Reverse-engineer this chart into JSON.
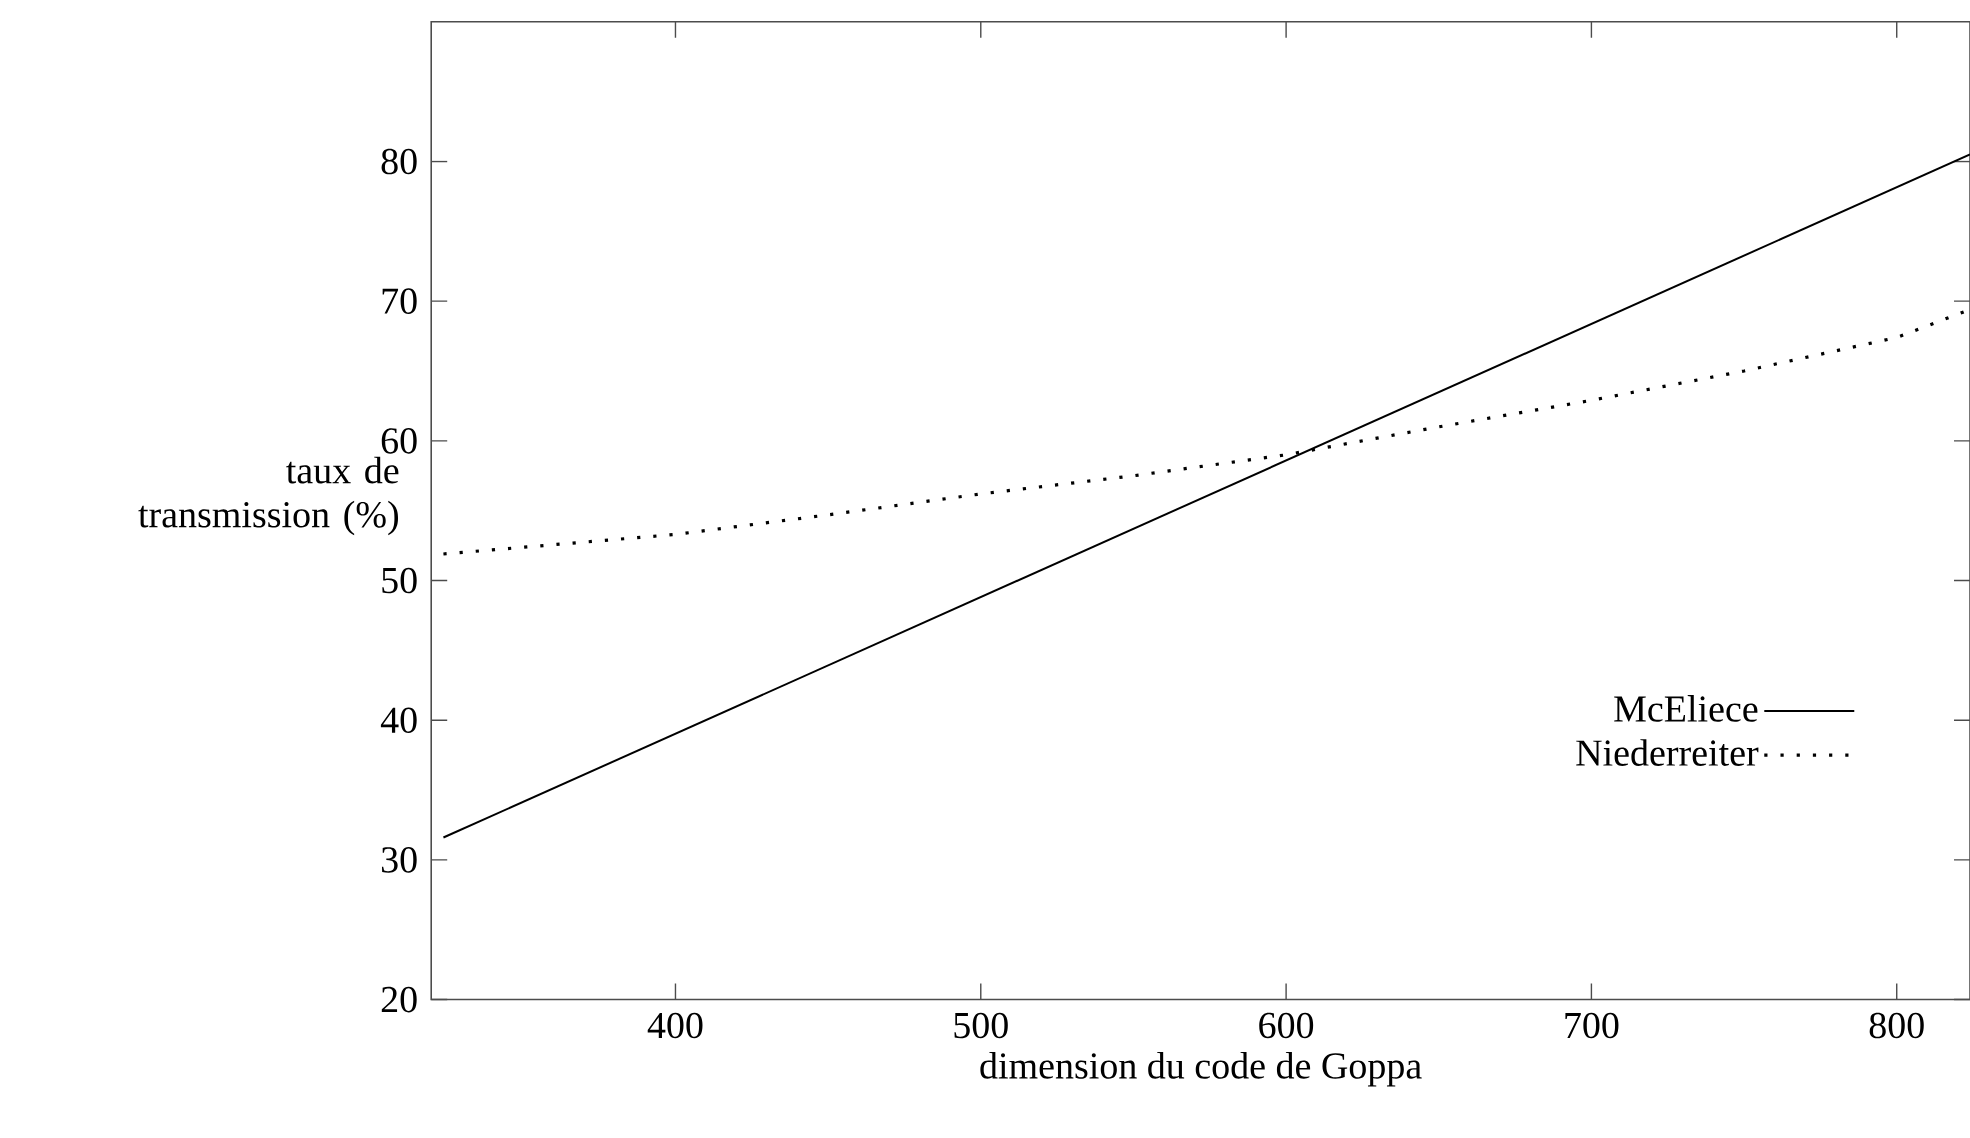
{
  "chart_data": {
    "type": "line",
    "xlabel": "dimension du code de Goppa",
    "ylabel": "taux de transmission (%)",
    "xlim": [
      320,
      824
    ],
    "ylim": [
      20,
      90
    ],
    "xticks": [
      400,
      500,
      600,
      700,
      800
    ],
    "yticks": [
      20,
      30,
      40,
      50,
      60,
      70,
      80
    ],
    "legend": "bottom right",
    "grid": false,
    "series": [
      {
        "name": "McEliece",
        "color": "#000000",
        "line_style": "solid",
        "x": [
          324,
          824
        ],
        "values": [
          31.6,
          80.5
        ]
      },
      {
        "name": "Niederreiter",
        "color": "#000000",
        "line_style": "dotted",
        "x": [
          324,
          400,
          450,
          500,
          550,
          600,
          650,
          700,
          750,
          800,
          824
        ],
        "values": [
          51.9,
          53.3,
          54.7,
          56.2,
          57.5,
          59.0,
          61.0,
          62.9,
          65.0,
          67.4,
          69.4
        ]
      }
    ]
  }
}
